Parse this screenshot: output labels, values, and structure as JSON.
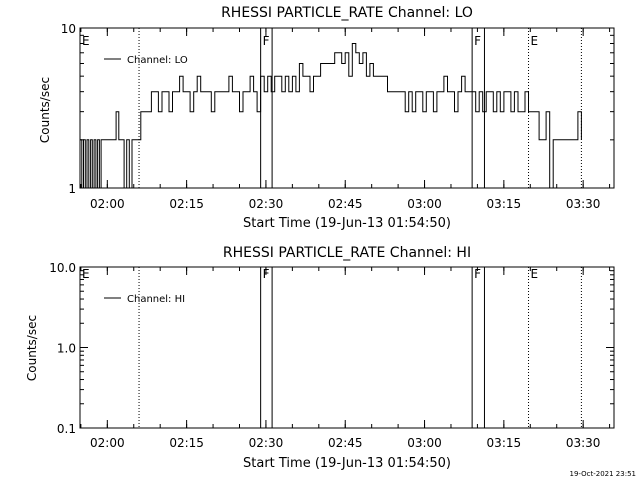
{
  "chart_data": [
    {
      "type": "line",
      "title": "RHESSI PARTICLE_RATE Channel: LO",
      "xlabel": "Start Time (19-Jun-13 01:54:50)",
      "ylabel": "Counts/sec",
      "x_tick_labels": [
        "02:00",
        "02:15",
        "02:30",
        "02:45",
        "03:00",
        "03:15",
        "03:30"
      ],
      "y_tick_labels": [
        "1",
        "10"
      ],
      "y_scale": "log",
      "ylim": [
        1,
        10
      ],
      "xlim": [
        "01:54:50",
        "03:35:50"
      ],
      "legend": {
        "position": "top-left",
        "entries": [
          "Channel: LO"
        ]
      },
      "grid": false,
      "markers": [
        {
          "label": "E",
          "time": "01:54:50",
          "style": "none"
        },
        {
          "label": "",
          "time": "02:06:00",
          "style": "dotted"
        },
        {
          "label": "F",
          "time": "02:29:00",
          "style": "solid"
        },
        {
          "label": "",
          "time": "02:31:10",
          "style": "solid"
        },
        {
          "label": "F",
          "time": "03:09:00",
          "style": "solid"
        },
        {
          "label": "",
          "time": "03:11:20",
          "style": "solid"
        },
        {
          "label": "E",
          "time": "03:19:40",
          "style": "dotted"
        },
        {
          "label": "",
          "time": "03:29:40",
          "style": "dotted"
        }
      ],
      "series": [
        {
          "name": "Channel: LO",
          "points": [
            [
              "01:54:50",
              2
            ],
            [
              "01:55:10",
              1
            ],
            [
              "01:55:30",
              2
            ],
            [
              "01:55:50",
              1
            ],
            [
              "01:56:10",
              2
            ],
            [
              "01:56:30",
              1
            ],
            [
              "01:56:50",
              2
            ],
            [
              "01:57:10",
              1
            ],
            [
              "01:57:30",
              2
            ],
            [
              "01:57:50",
              1
            ],
            [
              "01:58:10",
              2
            ],
            [
              "01:58:30",
              1
            ],
            [
              "01:58:50",
              2
            ],
            [
              "01:59:30",
              2
            ],
            [
              "02:00:30",
              2
            ],
            [
              "02:01:10",
              2
            ],
            [
              "02:01:40",
              3
            ],
            [
              "02:02:10",
              2
            ],
            [
              "02:02:40",
              2
            ],
            [
              "02:03:10",
              1
            ],
            [
              "02:03:40",
              2
            ],
            [
              "02:04:10",
              1
            ],
            [
              "02:04:40",
              2
            ],
            [
              "02:05:10",
              2
            ],
            [
              "02:05:40",
              2
            ],
            [
              "02:06:20",
              3
            ],
            [
              "02:07:00",
              3
            ],
            [
              "02:07:40",
              3
            ],
            [
              "02:08:20",
              4
            ],
            [
              "02:09:00",
              4
            ],
            [
              "02:09:40",
              3
            ],
            [
              "02:10:20",
              4
            ],
            [
              "02:11:00",
              4
            ],
            [
              "02:11:40",
              3
            ],
            [
              "02:12:20",
              4
            ],
            [
              "02:13:00",
              4
            ],
            [
              "02:13:40",
              5
            ],
            [
              "02:14:20",
              4
            ],
            [
              "02:15:00",
              4
            ],
            [
              "02:15:40",
              3
            ],
            [
              "02:16:20",
              4
            ],
            [
              "02:17:00",
              5
            ],
            [
              "02:17:40",
              4
            ],
            [
              "02:18:20",
              4
            ],
            [
              "02:19:00",
              4
            ],
            [
              "02:19:40",
              3
            ],
            [
              "02:20:20",
              4
            ],
            [
              "02:21:00",
              4
            ],
            [
              "02:21:40",
              4
            ],
            [
              "02:22:20",
              4
            ],
            [
              "02:23:00",
              5
            ],
            [
              "02:23:40",
              4
            ],
            [
              "02:24:20",
              4
            ],
            [
              "02:25:00",
              3
            ],
            [
              "02:25:40",
              4
            ],
            [
              "02:26:20",
              4
            ],
            [
              "02:27:00",
              5
            ],
            [
              "02:27:40",
              4
            ],
            [
              "02:28:20",
              3
            ],
            [
              "02:29:00",
              5
            ],
            [
              "02:29:40",
              4
            ],
            [
              "02:30:20",
              5
            ],
            [
              "02:31:00",
              4
            ],
            [
              "02:31:40",
              5
            ],
            [
              "02:32:20",
              5
            ],
            [
              "02:33:00",
              4
            ],
            [
              "02:33:40",
              5
            ],
            [
              "02:34:20",
              4
            ],
            [
              "02:35:00",
              5
            ],
            [
              "02:35:40",
              4
            ],
            [
              "02:36:20",
              6
            ],
            [
              "02:37:00",
              5
            ],
            [
              "02:37:40",
              5
            ],
            [
              "02:38:20",
              4
            ],
            [
              "02:39:00",
              5
            ],
            [
              "02:39:40",
              5
            ],
            [
              "02:40:20",
              6
            ],
            [
              "02:41:00",
              6
            ],
            [
              "02:41:40",
              6
            ],
            [
              "02:42:20",
              6
            ],
            [
              "02:43:00",
              7
            ],
            [
              "02:43:40",
              7
            ],
            [
              "02:44:20",
              6
            ],
            [
              "02:45:00",
              7
            ],
            [
              "02:45:40",
              5
            ],
            [
              "02:46:20",
              8
            ],
            [
              "02:47:00",
              7
            ],
            [
              "02:47:40",
              6
            ],
            [
              "02:48:20",
              7
            ],
            [
              "02:49:00",
              5
            ],
            [
              "02:49:40",
              6
            ],
            [
              "02:50:20",
              5
            ],
            [
              "02:51:00",
              5
            ],
            [
              "02:51:40",
              5
            ],
            [
              "02:52:20",
              5
            ],
            [
              "02:53:00",
              4
            ],
            [
              "02:53:40",
              4
            ],
            [
              "02:54:20",
              4
            ],
            [
              "02:55:00",
              4
            ],
            [
              "02:55:40",
              4
            ],
            [
              "02:56:20",
              3
            ],
            [
              "02:57:00",
              4
            ],
            [
              "02:57:40",
              3
            ],
            [
              "02:58:20",
              4
            ],
            [
              "02:59:00",
              4
            ],
            [
              "02:59:40",
              3
            ],
            [
              "03:00:20",
              4
            ],
            [
              "03:01:00",
              4
            ],
            [
              "03:01:40",
              3
            ],
            [
              "03:02:20",
              4
            ],
            [
              "03:03:00",
              4
            ],
            [
              "03:03:40",
              5
            ],
            [
              "03:04:20",
              4
            ],
            [
              "03:05:00",
              4
            ],
            [
              "03:05:40",
              3
            ],
            [
              "03:06:20",
              4
            ],
            [
              "03:07:00",
              5
            ],
            [
              "03:07:40",
              4
            ],
            [
              "03:08:20",
              4
            ],
            [
              "03:09:00",
              4
            ],
            [
              "03:09:40",
              3
            ],
            [
              "03:10:20",
              4
            ],
            [
              "03:11:00",
              3
            ],
            [
              "03:11:40",
              4
            ],
            [
              "03:12:20",
              4
            ],
            [
              "03:13:00",
              3
            ],
            [
              "03:13:40",
              4
            ],
            [
              "03:14:20",
              3
            ],
            [
              "03:15:00",
              4
            ],
            [
              "03:15:40",
              4
            ],
            [
              "03:16:20",
              3
            ],
            [
              "03:17:00",
              4
            ],
            [
              "03:17:40",
              3
            ],
            [
              "03:18:20",
              3
            ],
            [
              "03:19:00",
              4
            ],
            [
              "03:19:40",
              3
            ],
            [
              "03:20:20",
              3
            ],
            [
              "03:21:00",
              3
            ],
            [
              "03:21:40",
              2
            ],
            [
              "03:22:20",
              2
            ],
            [
              "03:23:00",
              3
            ],
            [
              "03:23:40",
              1
            ],
            [
              "03:24:20",
              2
            ],
            [
              "03:25:00",
              2
            ],
            [
              "03:25:40",
              2
            ],
            [
              "03:26:20",
              2
            ],
            [
              "03:27:00",
              2
            ],
            [
              "03:27:40",
              2
            ],
            [
              "03:28:20",
              2
            ],
            [
              "03:29:00",
              3
            ],
            [
              "03:29:40",
              2
            ]
          ]
        }
      ]
    },
    {
      "type": "line",
      "title": "RHESSI PARTICLE_RATE Channel: HI",
      "xlabel": "Start Time (19-Jun-13 01:54:50)",
      "ylabel": "Counts/sec",
      "x_tick_labels": [
        "02:00",
        "02:15",
        "02:30",
        "02:45",
        "03:00",
        "03:15",
        "03:30"
      ],
      "y_tick_labels": [
        "0.1",
        "1.0",
        "10.0"
      ],
      "y_scale": "log",
      "ylim": [
        0.1,
        10
      ],
      "xlim": [
        "01:54:50",
        "03:35:50"
      ],
      "legend": {
        "position": "top-left",
        "entries": [
          "Channel: HI"
        ]
      },
      "grid": false,
      "markers": [
        {
          "label": "E",
          "time": "01:54:50",
          "style": "none"
        },
        {
          "label": "",
          "time": "02:06:00",
          "style": "dotted"
        },
        {
          "label": "F",
          "time": "02:29:00",
          "style": "solid"
        },
        {
          "label": "",
          "time": "02:31:10",
          "style": "solid"
        },
        {
          "label": "F",
          "time": "03:09:00",
          "style": "solid"
        },
        {
          "label": "",
          "time": "03:11:20",
          "style": "solid"
        },
        {
          "label": "E",
          "time": "03:19:40",
          "style": "dotted"
        },
        {
          "label": "",
          "time": "03:29:40",
          "style": "dotted"
        }
      ],
      "series": [
        {
          "name": "Channel: HI",
          "points": []
        }
      ]
    }
  ],
  "footer": {
    "timestamp": "19-Oct-2021 23:51"
  }
}
